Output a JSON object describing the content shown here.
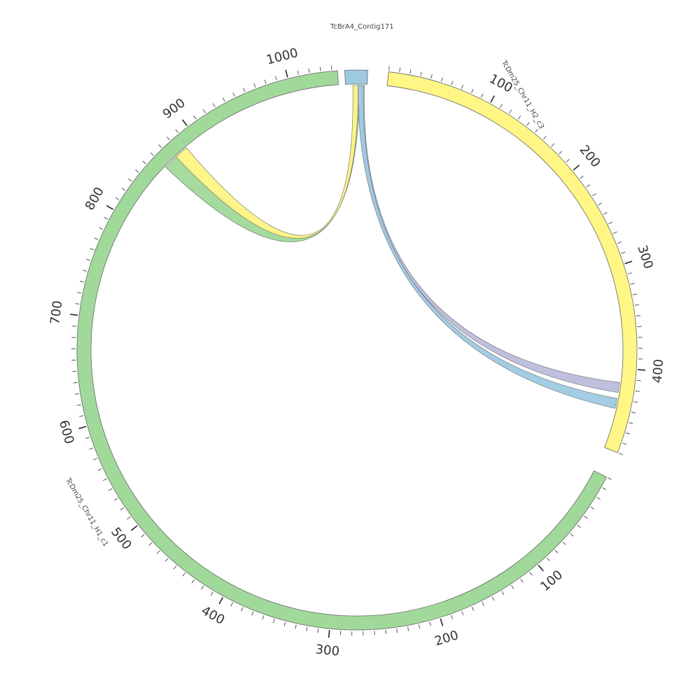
{
  "chart_data": {
    "type": "chord",
    "tracks": [
      {
        "id": "contig",
        "name": "TcBrA4_Contig171",
        "length": 10,
        "color": "#9ecae1"
      },
      {
        "id": "h2",
        "name": "TcDm25_Chr11_H2_c3",
        "length": 480,
        "color": "#fff685"
      },
      {
        "id": "h1",
        "name": "TcDm25_Chr11_H1_c1",
        "length": 1045,
        "color": "#a1d99b"
      }
    ],
    "major_ticks": {
      "h2": [
        100,
        200,
        300,
        400
      ],
      "h1": [
        100,
        200,
        300,
        400,
        500,
        600,
        700,
        800,
        900,
        1000
      ]
    },
    "links": [
      {
        "source": "contig",
        "target": "h1",
        "target_start": 860,
        "target_end": 877,
        "color": "#a1d99b"
      },
      {
        "source": "contig",
        "target": "h1",
        "target_start": 874,
        "target_end": 887,
        "color": "#fff685"
      },
      {
        "source": "contig",
        "target": "h2",
        "target_start": 414,
        "target_end": 424,
        "color": "#bcbddc"
      },
      {
        "source": "contig",
        "target": "h2",
        "target_start": 430,
        "target_end": 440,
        "color": "#9ecae1"
      }
    ]
  }
}
